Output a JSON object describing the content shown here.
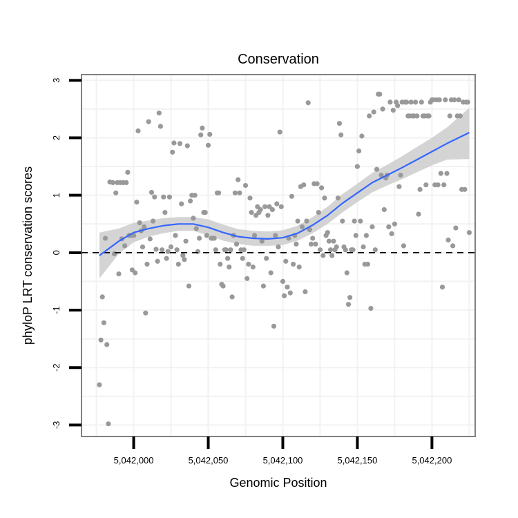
{
  "chart_data": {
    "type": "scatter",
    "title": "Conservation",
    "xlabel": "Genomic Position",
    "ylabel": "phyloP LRT conservation scores",
    "xlim": [
      5041965,
      5042229
    ],
    "ylim": [
      -3.2,
      3.1
    ],
    "x_ticks": [
      5042000,
      5042050,
      5042100,
      5042150,
      5042200
    ],
    "x_tick_labels": [
      "5,042,000",
      "5,042,050",
      "5,042,100",
      "5,042,150",
      "5,042,200"
    ],
    "y_ticks": [
      -3,
      -2,
      -1,
      0,
      1,
      2,
      3
    ],
    "y_tick_labels": [
      "-3",
      "-2",
      "-1",
      "0",
      "1",
      "2",
      "3"
    ],
    "reference_line": {
      "y": 0,
      "style": "dashed"
    },
    "grid": true,
    "colors": {
      "points": "#999999",
      "smooth": "#3366ff",
      "ribbon": "#cccccc",
      "panel_border": "#808080",
      "grid": "#f2f2f2"
    },
    "series": [
      {
        "name": "scores",
        "points": [
          [
            5041977,
            -2.3
          ],
          [
            5041978,
            -1.52
          ],
          [
            5041979,
            -0.77
          ],
          [
            5041980,
            -1.22
          ],
          [
            5041981,
            0.25
          ],
          [
            5041982,
            -1.6
          ],
          [
            5041983,
            -2.98
          ],
          [
            5041984,
            1.23
          ],
          [
            5041986,
            1.22
          ],
          [
            5041987,
            -0.02
          ],
          [
            5041988,
            1.04
          ],
          [
            5041989,
            1.22
          ],
          [
            5041990,
            -0.37
          ],
          [
            5041991,
            1.22
          ],
          [
            5041992,
            0.24
          ],
          [
            5041993,
            1.22
          ],
          [
            5041994,
            0.12
          ],
          [
            5041995,
            1.22
          ],
          [
            5041996,
            1.4
          ],
          [
            5041997,
            0.3
          ],
          [
            5041998,
            0.3
          ],
          [
            5041999,
            -0.3
          ],
          [
            5042000,
            0.3
          ],
          [
            5042001,
            -0.35
          ],
          [
            5042002,
            0.88
          ],
          [
            5042003,
            2.12
          ],
          [
            5042004,
            0.52
          ],
          [
            5042005,
            0.38
          ],
          [
            5042006,
            0.1
          ],
          [
            5042007,
            0.45
          ],
          [
            5042008,
            -1.05
          ],
          [
            5042009,
            -0.2
          ],
          [
            5042010,
            2.28
          ],
          [
            5042011,
            0.24
          ],
          [
            5042012,
            1.05
          ],
          [
            5042013,
            0.55
          ],
          [
            5042014,
            0.97
          ],
          [
            5042015,
            0.06
          ],
          [
            5042016,
            -0.15
          ],
          [
            5042017,
            2.43
          ],
          [
            5042018,
            2.2
          ],
          [
            5042019,
            0.05
          ],
          [
            5042020,
            0.97
          ],
          [
            5042021,
            0.7
          ],
          [
            5042022,
            -0.1
          ],
          [
            5042023,
            0.02
          ],
          [
            5042024,
            0.97
          ],
          [
            5042025,
            0.1
          ],
          [
            5042026,
            1.75
          ],
          [
            5042027,
            1.91
          ],
          [
            5042028,
            0.3
          ],
          [
            5042029,
            0.05
          ],
          [
            5042030,
            -0.2
          ],
          [
            5042031,
            1.9
          ],
          [
            5042032,
            0.85
          ],
          [
            5042033,
            -0.05
          ],
          [
            5042034,
            -0.12
          ],
          [
            5042035,
            0.2
          ],
          [
            5042036,
            1.86
          ],
          [
            5042037,
            -0.58
          ],
          [
            5042038,
            0.9
          ],
          [
            5042039,
            1.0
          ],
          [
            5042040,
            0.6
          ],
          [
            5042041,
            1.0
          ],
          [
            5042042,
            0.42
          ],
          [
            5042043,
            0.02
          ],
          [
            5042044,
            0.25
          ],
          [
            5042045,
            2.05
          ],
          [
            5042046,
            2.17
          ],
          [
            5042047,
            0.7
          ],
          [
            5042048,
            0.7
          ],
          [
            5042049,
            0.3
          ],
          [
            5042050,
            1.87
          ],
          [
            5042051,
            2.06
          ],
          [
            5042052,
            0.25
          ],
          [
            5042053,
            0.25
          ],
          [
            5042054,
            0.25
          ],
          [
            5042055,
            0.05
          ],
          [
            5042056,
            1.04
          ],
          [
            5042057,
            1.04
          ],
          [
            5042058,
            -0.2
          ],
          [
            5042059,
            -0.55
          ],
          [
            5042060,
            -0.58
          ],
          [
            5042061,
            0.05
          ],
          [
            5042062,
            0.05
          ],
          [
            5042063,
            -0.1
          ],
          [
            5042064,
            -0.25
          ],
          [
            5042065,
            0.05
          ],
          [
            5042066,
            -0.77
          ],
          [
            5042067,
            0.3
          ],
          [
            5042068,
            1.04
          ],
          [
            5042069,
            0.15
          ],
          [
            5042070,
            1.27
          ],
          [
            5042071,
            1.04
          ],
          [
            5042072,
            0.05
          ],
          [
            5042073,
            -0.1
          ],
          [
            5042074,
            0.05
          ],
          [
            5042075,
            1.17
          ],
          [
            5042076,
            -0.45
          ],
          [
            5042077,
            -0.2
          ],
          [
            5042078,
            0.95
          ],
          [
            5042079,
            0.7
          ],
          [
            5042080,
            -0.25
          ],
          [
            5042081,
            0.3
          ],
          [
            5042082,
            0.65
          ],
          [
            5042083,
            0.8
          ],
          [
            5042084,
            0.7
          ],
          [
            5042085,
            0.75
          ],
          [
            5042086,
            0.2
          ],
          [
            5042087,
            -0.58
          ],
          [
            5042088,
            0.8
          ],
          [
            5042089,
            -0.1
          ],
          [
            5042090,
            0.65
          ],
          [
            5042091,
            0.8
          ],
          [
            5042092,
            -0.35
          ],
          [
            5042093,
            0.75
          ],
          [
            5042094,
            -1.28
          ],
          [
            5042095,
            0.3
          ],
          [
            5042096,
            0.85
          ],
          [
            5042097,
            0.1
          ],
          [
            5042098,
            2.1
          ],
          [
            5042099,
            0.8
          ],
          [
            5042100,
            -0.5
          ],
          [
            5042101,
            -0.75
          ],
          [
            5042102,
            -0.15
          ],
          [
            5042103,
            -0.6
          ],
          [
            5042104,
            0.25
          ],
          [
            5042105,
            -0.7
          ],
          [
            5042106,
            0.98
          ],
          [
            5042107,
            -0.2
          ],
          [
            5042108,
            0.3
          ],
          [
            5042109,
            0.15
          ],
          [
            5042110,
            0.55
          ],
          [
            5042111,
            -0.25
          ],
          [
            5042112,
            1.15
          ],
          [
            5042113,
            0.45
          ],
          [
            5042114,
            1.18
          ],
          [
            5042115,
            -0.68
          ],
          [
            5042116,
            0.55
          ],
          [
            5042117,
            2.61
          ],
          [
            5042118,
            0.4
          ],
          [
            5042119,
            0.15
          ],
          [
            5042120,
            0.25
          ],
          [
            5042121,
            1.2
          ],
          [
            5042122,
            0.15
          ],
          [
            5042123,
            1.2
          ],
          [
            5042124,
            0.7
          ],
          [
            5042125,
            0.05
          ],
          [
            5042126,
            1.13
          ],
          [
            5042127,
            -0.05
          ],
          [
            5042128,
            0.95
          ],
          [
            5042129,
            0.3
          ],
          [
            5042130,
            0.35
          ],
          [
            5042131,
            0.2
          ],
          [
            5042132,
            0.05
          ],
          [
            5042133,
            -0.05
          ],
          [
            5042134,
            0.2
          ],
          [
            5042135,
            0.05
          ],
          [
            5042136,
            0.1
          ],
          [
            5042137,
            0.95
          ],
          [
            5042138,
            2.25
          ],
          [
            5042139,
            2.05
          ],
          [
            5042140,
            0.55
          ],
          [
            5042141,
            0.1
          ],
          [
            5042142,
            0.05
          ],
          [
            5042143,
            -0.35
          ],
          [
            5042144,
            -0.9
          ],
          [
            5042145,
            -0.78
          ],
          [
            5042146,
            0.05
          ],
          [
            5042147,
            0.05
          ],
          [
            5042148,
            0.55
          ],
          [
            5042149,
            0.3
          ],
          [
            5042150,
            1.5
          ],
          [
            5042151,
            1.77
          ],
          [
            5042152,
            0.55
          ],
          [
            5042153,
            2.03
          ],
          [
            5042154,
            0.1
          ],
          [
            5042155,
            -0.2
          ],
          [
            5042156,
            0.3
          ],
          [
            5042157,
            -0.2
          ],
          [
            5042158,
            2.38
          ],
          [
            5042159,
            -0.97
          ],
          [
            5042160,
            0.45
          ],
          [
            5042161,
            2.45
          ],
          [
            5042162,
            0.05
          ],
          [
            5042163,
            1.45
          ],
          [
            5042164,
            2.76
          ],
          [
            5042165,
            2.76
          ],
          [
            5042166,
            1.35
          ],
          [
            5042167,
            2.5
          ],
          [
            5042168,
            0.75
          ],
          [
            5042169,
            1.3
          ],
          [
            5042170,
            1.35
          ],
          [
            5042171,
            0.45
          ],
          [
            5042172,
            2.62
          ],
          [
            5042173,
            0.33
          ],
          [
            5042174,
            2.48
          ],
          [
            5042175,
            0.5
          ],
          [
            5042176,
            2.62
          ],
          [
            5042177,
            2.56
          ],
          [
            5042178,
            1.15
          ],
          [
            5042179,
            1.35
          ],
          [
            5042180,
            2.62
          ],
          [
            5042181,
            0.12
          ],
          [
            5042182,
            2.62
          ],
          [
            5042183,
            2.62
          ],
          [
            5042184,
            2.38
          ],
          [
            5042185,
            2.38
          ],
          [
            5042186,
            2.62
          ],
          [
            5042187,
            2.38
          ],
          [
            5042188,
            2.38
          ],
          [
            5042189,
            2.62
          ],
          [
            5042190,
            2.38
          ],
          [
            5042191,
            0.67
          ],
          [
            5042192,
            1.1
          ],
          [
            5042193,
            2.62
          ],
          [
            5042194,
            2.38
          ],
          [
            5042195,
            2.38
          ],
          [
            5042196,
            1.18
          ],
          [
            5042197,
            2.38
          ],
          [
            5042198,
            2.38
          ],
          [
            5042199,
            2.62
          ],
          [
            5042200,
            2.66
          ],
          [
            5042201,
            2.66
          ],
          [
            5042202,
            1.18
          ],
          [
            5042203,
            2.66
          ],
          [
            5042204,
            1.18
          ],
          [
            5042205,
            2.66
          ],
          [
            5042206,
            1.38
          ],
          [
            5042207,
            -0.6
          ],
          [
            5042208,
            1.18
          ],
          [
            5042209,
            2.66
          ],
          [
            5042210,
            1.38
          ],
          [
            5042211,
            0.22
          ],
          [
            5042212,
            2.38
          ],
          [
            5042213,
            2.66
          ],
          [
            5042214,
            0.12
          ],
          [
            5042215,
            2.66
          ],
          [
            5042216,
            0.43
          ],
          [
            5042217,
            2.38
          ],
          [
            5042218,
            2.66
          ],
          [
            5042219,
            2.38
          ],
          [
            5042220,
            1.1
          ],
          [
            5042221,
            2.62
          ],
          [
            5042222,
            1.1
          ],
          [
            5042223,
            2.62
          ],
          [
            5042224,
            2.62
          ],
          [
            5042225,
            0.35
          ]
        ]
      },
      {
        "name": "loess_smooth",
        "x": [
          5041977,
          5041990,
          5042000,
          5042010,
          5042020,
          5042030,
          5042040,
          5042050,
          5042060,
          5042070,
          5042080,
          5042090,
          5042100,
          5042110,
          5042120,
          5042130,
          5042140,
          5042150,
          5042160,
          5042170,
          5042180,
          5042190,
          5042200,
          5042210,
          5042225
        ],
        "y": [
          -0.05,
          0.2,
          0.35,
          0.42,
          0.47,
          0.5,
          0.5,
          0.44,
          0.35,
          0.28,
          0.25,
          0.24,
          0.26,
          0.34,
          0.48,
          0.65,
          0.86,
          1.04,
          1.22,
          1.35,
          1.48,
          1.62,
          1.76,
          1.9,
          2.09
        ],
        "lower": [
          -0.45,
          -0.02,
          0.18,
          0.28,
          0.34,
          0.38,
          0.38,
          0.3,
          0.21,
          0.15,
          0.12,
          0.12,
          0.13,
          0.21,
          0.34,
          0.5,
          0.7,
          0.88,
          1.05,
          1.17,
          1.28,
          1.4,
          1.52,
          1.62,
          1.63
        ],
        "upper": [
          0.35,
          0.42,
          0.52,
          0.56,
          0.6,
          0.62,
          0.62,
          0.58,
          0.49,
          0.41,
          0.38,
          0.37,
          0.39,
          0.47,
          0.62,
          0.8,
          1.02,
          1.2,
          1.39,
          1.53,
          1.68,
          1.84,
          2.0,
          2.18,
          2.52
        ]
      }
    ]
  }
}
